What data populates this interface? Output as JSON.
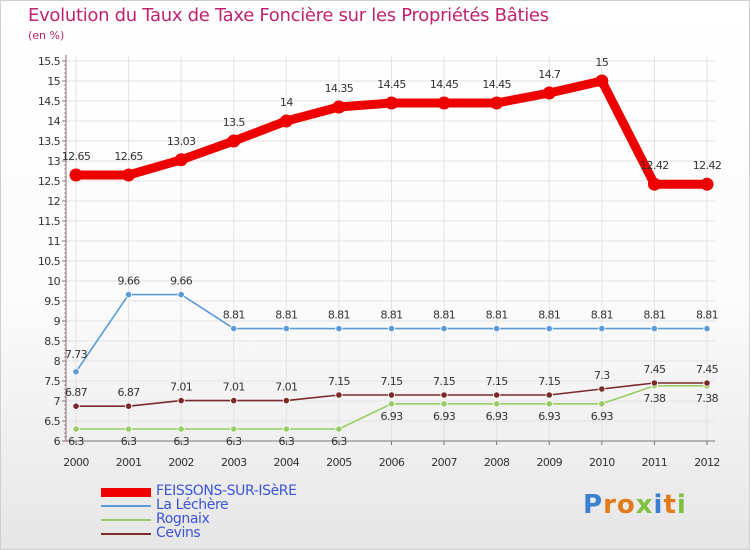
{
  "title": "Evolution du Taux de Taxe Foncière sur les Propriétés Bâties",
  "unit_label": "(en %)",
  "logo": {
    "text": "Proxiti",
    "letters": [
      {
        "char": "P",
        "color": "#3a7fd0"
      },
      {
        "char": "r",
        "color": "#e07b1a"
      },
      {
        "char": "o",
        "color": "#e07b1a"
      },
      {
        "char": "x",
        "color": "#7fc241"
      },
      {
        "char": "i",
        "color": "#3a7fd0"
      },
      {
        "char": "t",
        "color": "#e07b1a"
      },
      {
        "char": "i",
        "color": "#7fc241"
      }
    ]
  },
  "chart_data": {
    "type": "line",
    "title": "Evolution du Taux de Taxe Foncière sur les Propriétés Bâties",
    "ylabel": "(en %)",
    "xlabel": "",
    "categories": [
      "2000",
      "2001",
      "2002",
      "2003",
      "2004",
      "2005",
      "2006",
      "2007",
      "2008",
      "2009",
      "2010",
      "2011",
      "2012"
    ],
    "ylim": [
      6,
      15.5
    ],
    "y_ticks": [
      6,
      6.5,
      7,
      7.5,
      8,
      8.5,
      9,
      9.5,
      10,
      10.5,
      11,
      11.5,
      12,
      12.5,
      13,
      13.5,
      14,
      14.5,
      15,
      15.5
    ],
    "y_tick_labels": [
      "6",
      "6.5",
      "7",
      "7.5",
      "8",
      "8.5",
      "9",
      "9.5",
      "10",
      "10.5",
      "11",
      "11.5",
      "12",
      "12.5",
      "13",
      "13.5",
      "14",
      "14.5",
      "15",
      "15.5"
    ],
    "grid": true,
    "legend_position": "bottom-left",
    "series": [
      {
        "name": "FEISSONS-SUR-ISèRE",
        "color": "#ee0000",
        "values": [
          12.65,
          12.65,
          13.03,
          13.5,
          14,
          14.35,
          14.45,
          14.45,
          14.45,
          14.7,
          15,
          12.42,
          12.42
        ],
        "labels": [
          "12.65",
          "12.65",
          "13.03",
          "13.5",
          "14",
          "14.35",
          "14.45",
          "14.45",
          "14.45",
          "14.7",
          "15",
          "12.42",
          "12.42"
        ]
      },
      {
        "name": "La Léchère",
        "color": "#5b9bd5",
        "values": [
          7.73,
          9.66,
          9.66,
          8.81,
          8.81,
          8.81,
          8.81,
          8.81,
          8.81,
          8.81,
          8.81,
          8.81,
          8.81
        ],
        "labels": [
          "7.73",
          "9.66",
          "9.66",
          "8.81",
          "8.81",
          "8.81",
          "8.81",
          "8.81",
          "8.81",
          "8.81",
          "8.81",
          "8.81",
          "8.81"
        ]
      },
      {
        "name": "Rognaix",
        "color": "#99cc66",
        "values": [
          6.3,
          6.3,
          6.3,
          6.3,
          6.3,
          6.3,
          6.93,
          6.93,
          6.93,
          6.93,
          6.93,
          7.38,
          7.38
        ],
        "labels": [
          "6.3",
          "6.3",
          "6.3",
          "6.3",
          "6.3",
          "6.3",
          "6.93",
          "6.93",
          "6.93",
          "6.93",
          "6.93",
          "7.38",
          "7.38"
        ]
      },
      {
        "name": "Cevins",
        "color": "#7a2a2a",
        "values": [
          6.87,
          6.87,
          7.01,
          7.01,
          7.01,
          7.15,
          7.15,
          7.15,
          7.15,
          7.15,
          7.3,
          7.45,
          7.45
        ],
        "labels": [
          "6.87",
          "6.87",
          "7.01",
          "7.01",
          "7.01",
          "7.15",
          "7.15",
          "7.15",
          "7.15",
          "7.15",
          "7.3",
          "7.45",
          "7.45"
        ]
      }
    ]
  }
}
